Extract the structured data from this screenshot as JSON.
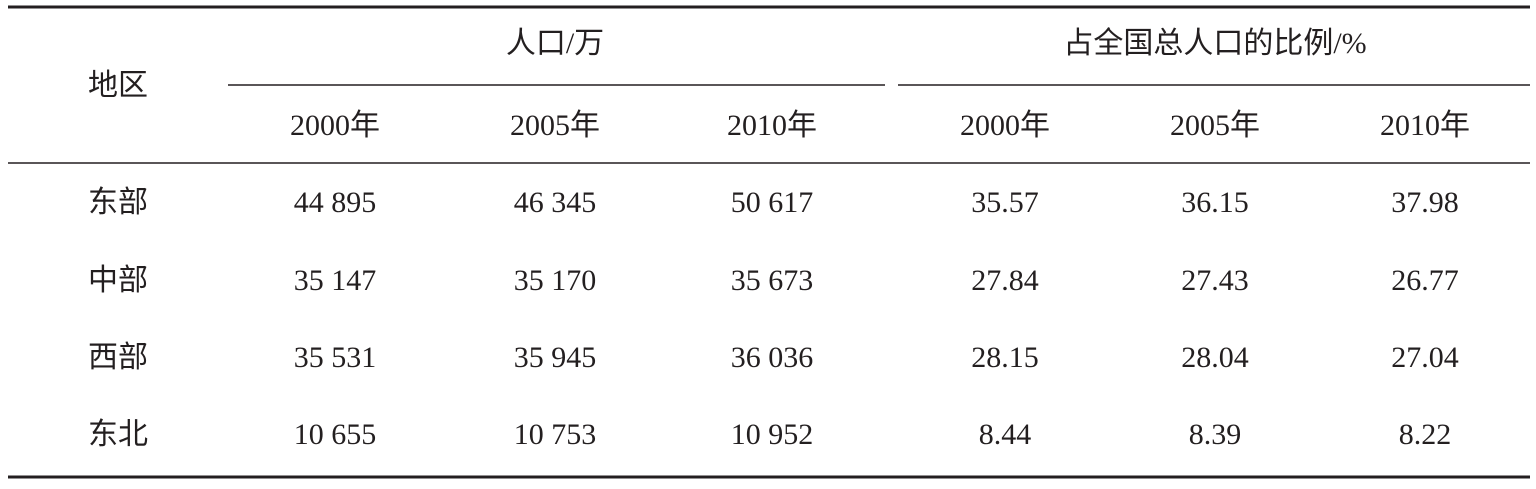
{
  "table": {
    "corner": "地区",
    "groups": [
      "人口/万",
      "占全国总人口的比例/%"
    ],
    "columns": [
      "2000年",
      "2005年",
      "2010年",
      "2000年",
      "2005年",
      "2010年"
    ],
    "rows": [
      [
        "东部",
        "44 895",
        "46 345",
        "50 617",
        "35.57",
        "36.15",
        "37.98"
      ],
      [
        "中部",
        "35 147",
        "35 170",
        "35 673",
        "27.84",
        "27.43",
        "26.77"
      ],
      [
        "西部",
        "35 531",
        "35 945",
        "36 036",
        "28.15",
        "28.04",
        "27.04"
      ],
      [
        "东北",
        "10 655",
        "10 753",
        "10 952",
        "8.44",
        "8.39",
        "8.22"
      ]
    ]
  }
}
